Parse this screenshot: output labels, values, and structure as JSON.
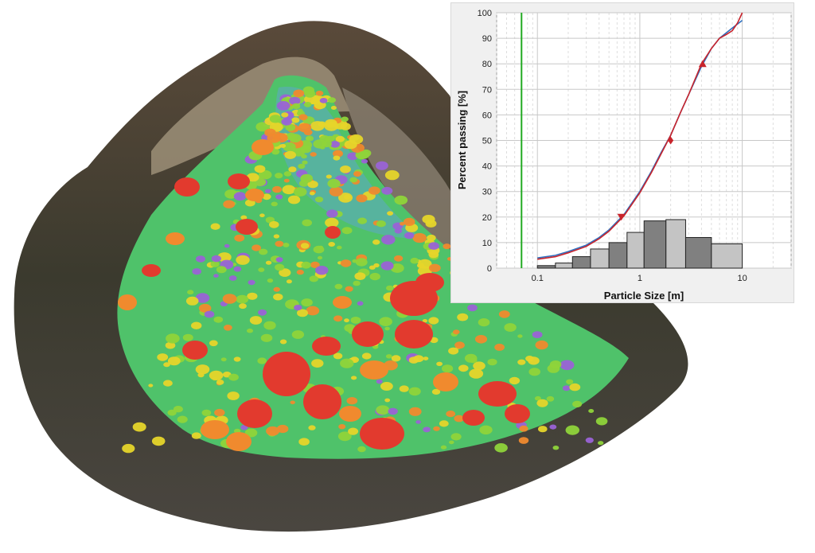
{
  "colors": {
    "chart_panel_bg": "#f0f0f0",
    "plot_bg": "#ffffff",
    "grid_major": "#c8c8c8",
    "grid_minor": "#dedede",
    "curve_fitted": "#2f6fbf",
    "curve_measured": "#c8242c",
    "marker": "#c8242c",
    "reference_line": "#22aa22",
    "bar_dark": "#808080",
    "bar_light": "#c4c4c4",
    "rock_red": "#e23a2e",
    "rock_orange": "#f08a2e",
    "rock_yellow": "#e6d52a",
    "rock_green": "#8fd43a",
    "rock_violet": "#9a63d6"
  },
  "photo": {
    "subject": "3D rockfall deposit model with segmented blocks colored by size"
  },
  "chart_data": {
    "type": "line",
    "title": "",
    "xlabel": "Particle Size [m]",
    "ylabel": "Percent passing [%]",
    "x_scale": "log",
    "xlim": [
      0.04,
      30
    ],
    "ylim": [
      0,
      100
    ],
    "x_tick_labels": [
      "0.1",
      "1",
      "10"
    ],
    "x_tick_values": [
      0.1,
      1,
      10
    ],
    "y_tick_values": [
      0,
      10,
      20,
      30,
      40,
      50,
      60,
      70,
      80,
      90,
      100
    ],
    "grid": true,
    "reference_line_x": 0.07,
    "series": [
      {
        "kind": "line",
        "color_key": "curve_fitted",
        "x": [
          0.1,
          0.15,
          0.2,
          0.3,
          0.4,
          0.5,
          0.7,
          1.0,
          1.3,
          1.6,
          2.0,
          2.5,
          3.0,
          4.0,
          5.0,
          6.0,
          8.0,
          10.0
        ],
        "y": [
          4,
          5,
          6.5,
          9,
          12,
          15,
          21,
          30,
          38,
          45,
          52,
          61,
          68,
          79,
          86,
          90,
          94,
          97
        ]
      },
      {
        "kind": "line",
        "color_key": "curve_measured",
        "x": [
          0.1,
          0.15,
          0.2,
          0.3,
          0.4,
          0.5,
          0.7,
          1.0,
          1.3,
          1.6,
          2.0,
          2.5,
          3.0,
          4.0,
          5.0,
          6.0,
          7.0,
          8.0,
          9.0,
          10.0
        ],
        "y": [
          3.5,
          4.5,
          6,
          8.5,
          11.5,
          14.5,
          20.5,
          29.5,
          37.5,
          44.5,
          52,
          61,
          68,
          80,
          86,
          90,
          91.5,
          93,
          96,
          100
        ]
      },
      {
        "kind": "markers",
        "color_key": "marker",
        "points": [
          {
            "x": 0.66,
            "y": 20,
            "shape": "triangle-down"
          },
          {
            "x": 2.0,
            "y": 50,
            "shape": "diamond"
          },
          {
            "x": 4.1,
            "y": 80,
            "shape": "triangle-up"
          }
        ]
      },
      {
        "kind": "histogram",
        "bins": [
          {
            "x0": 0.1,
            "x1": 0.15,
            "value": 1,
            "shade": "bar_dark"
          },
          {
            "x0": 0.15,
            "x1": 0.22,
            "value": 2,
            "shade": "bar_light"
          },
          {
            "x0": 0.22,
            "x1": 0.33,
            "value": 4.5,
            "shade": "bar_dark"
          },
          {
            "x0": 0.33,
            "x1": 0.5,
            "value": 7.5,
            "shade": "bar_light"
          },
          {
            "x0": 0.5,
            "x1": 0.75,
            "value": 10,
            "shade": "bar_dark"
          },
          {
            "x0": 0.75,
            "x1": 1.1,
            "value": 14,
            "shade": "bar_light"
          },
          {
            "x0": 1.1,
            "x1": 1.8,
            "value": 18.5,
            "shade": "bar_dark"
          },
          {
            "x0": 1.8,
            "x1": 2.8,
            "value": 19,
            "shade": "bar_light"
          },
          {
            "x0": 2.8,
            "x1": 5.0,
            "value": 12,
            "shade": "bar_dark"
          },
          {
            "x0": 5.0,
            "x1": 10.0,
            "value": 9.5,
            "shade": "bar_light"
          }
        ]
      }
    ]
  }
}
